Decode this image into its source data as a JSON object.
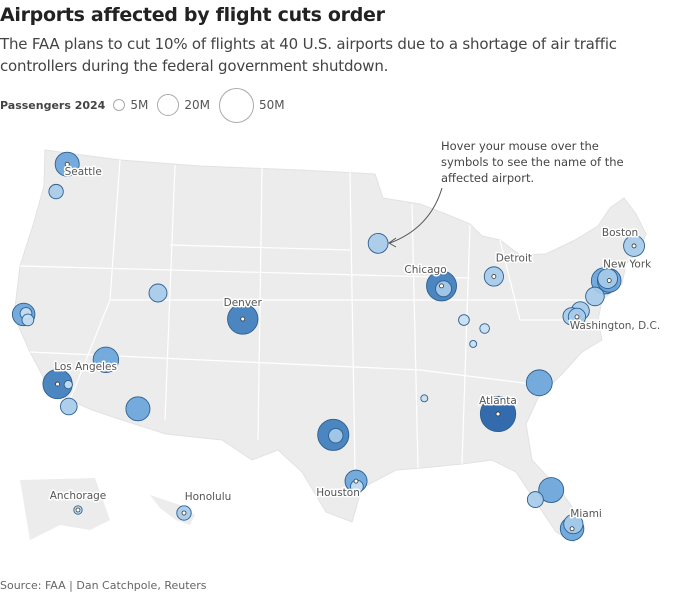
{
  "title": "Airports affected by flight cuts order",
  "subtitle": "The FAA plans to cut 10% of flights at 40 U.S. airports due to a shortage of air traffic controllers during the federal government shutdown.",
  "legend": {
    "title": "Passengers 2024",
    "items": [
      {
        "label": "5M",
        "value": 5
      },
      {
        "label": "20M",
        "value": 20
      },
      {
        "label": "50M",
        "value": 50
      }
    ]
  },
  "annotation": "Hover your mouse over the symbols to see the name of the affected airport.",
  "source": "Source: FAA | Dan Catchpole, Reuters",
  "colors": {
    "land": "#ececec",
    "border": "#ffffff",
    "stroke": "#2d5f8f",
    "darkest": "#2460a7",
    "dark": "#3d7dbd",
    "medium": "#6aa5da",
    "light": "#a6cbea",
    "lightest": "#c8dff2"
  },
  "airports": [
    {
      "code": "ATL",
      "lat": 33.64,
      "lon": -84.43,
      "passengers": 54,
      "label": "Atlanta"
    },
    {
      "code": "DFW",
      "lat": 32.9,
      "lon": -97.04,
      "passengers": 42,
      "label": ""
    },
    {
      "code": "DEN",
      "lat": 39.86,
      "lon": -104.67,
      "passengers": 40,
      "label": "Denver"
    },
    {
      "code": "ORD",
      "lat": 41.98,
      "lon": -87.9,
      "passengers": 39,
      "label": "Chicago"
    },
    {
      "code": "LAX",
      "lat": 33.94,
      "lon": -118.41,
      "passengers": 37,
      "label": "Los Angeles"
    },
    {
      "code": "EWR",
      "lat": 40.69,
      "lon": -74.17,
      "passengers": 30,
      "label": ""
    },
    {
      "code": "CLT",
      "lat": 35.21,
      "lon": -80.94,
      "passengers": 29,
      "label": ""
    },
    {
      "code": "LAS",
      "lat": 36.08,
      "lon": -115.15,
      "passengers": 28,
      "label": ""
    },
    {
      "code": "MCO",
      "lat": 28.43,
      "lon": -81.31,
      "passengers": 27,
      "label": ""
    },
    {
      "code": "PHX",
      "lat": 33.43,
      "lon": -112.01,
      "passengers": 25,
      "label": ""
    },
    {
      "code": "SEA",
      "lat": 47.45,
      "lon": -122.31,
      "passengers": 25,
      "label": "Seattle"
    },
    {
      "code": "JFK",
      "lat": 40.64,
      "lon": -73.78,
      "passengers": 24,
      "label": "New York"
    },
    {
      "code": "MIA",
      "lat": 25.79,
      "lon": -80.29,
      "passengers": 24,
      "label": "Miami"
    },
    {
      "code": "SFO",
      "lat": 37.62,
      "lon": -122.38,
      "passengers": 22,
      "label": ""
    },
    {
      "code": "IAH",
      "lat": 29.99,
      "lon": -95.34,
      "passengers": 21,
      "label": "Houston"
    },
    {
      "code": "BOS",
      "lat": 42.36,
      "lon": -71.01,
      "passengers": 19,
      "label": "Boston"
    },
    {
      "code": "MSP",
      "lat": 44.88,
      "lon": -93.22,
      "passengers": 17,
      "label": ""
    },
    {
      "code": "LGA",
      "lat": 40.78,
      "lon": -73.87,
      "passengers": 17,
      "label": ""
    },
    {
      "code": "DTW",
      "lat": 42.21,
      "lon": -83.35,
      "passengers": 16,
      "label": "Detroit"
    },
    {
      "code": "FLL",
      "lat": 26.07,
      "lon": -80.15,
      "passengers": 16,
      "label": ""
    },
    {
      "code": "PHL",
      "lat": 39.87,
      "lon": -75.24,
      "passengers": 15,
      "label": ""
    },
    {
      "code": "SLC",
      "lat": 40.79,
      "lon": -111.98,
      "passengers": 14,
      "label": ""
    },
    {
      "code": "BWI",
      "lat": 39.18,
      "lon": -76.67,
      "passengers": 14,
      "label": ""
    },
    {
      "code": "IAD",
      "lat": 38.95,
      "lon": -77.46,
      "passengers": 13,
      "label": ""
    },
    {
      "code": "DCA",
      "lat": 38.85,
      "lon": -77.04,
      "passengers": 13,
      "label": "Washington, D.C."
    },
    {
      "code": "SAN",
      "lat": 32.73,
      "lon": -117.19,
      "passengers": 12,
      "label": ""
    },
    {
      "code": "TPA",
      "lat": 27.98,
      "lon": -82.53,
      "passengers": 11,
      "label": ""
    },
    {
      "code": "MDW",
      "lat": 41.79,
      "lon": -87.75,
      "passengers": 11,
      "label": ""
    },
    {
      "code": "PDX",
      "lat": 45.59,
      "lon": -122.6,
      "passengers": 9,
      "label": ""
    },
    {
      "code": "DAL",
      "lat": 32.85,
      "lon": -96.85,
      "passengers": 9,
      "label": ""
    },
    {
      "code": "HOU",
      "lat": 29.65,
      "lon": -95.28,
      "passengers": 7,
      "label": ""
    },
    {
      "code": "OAK",
      "lat": 37.72,
      "lon": -122.22,
      "passengers": 6,
      "label": ""
    },
    {
      "code": "SJC",
      "lat": 37.36,
      "lon": -121.93,
      "passengers": 6,
      "label": ""
    },
    {
      "code": "IND",
      "lat": 39.72,
      "lon": -86.29,
      "passengers": 5,
      "label": ""
    },
    {
      "code": "CVG",
      "lat": 39.05,
      "lon": -84.67,
      "passengers": 4,
      "label": ""
    },
    {
      "code": "ONT",
      "lat": 34.06,
      "lon": -117.6,
      "passengers": 3,
      "label": ""
    },
    {
      "code": "SDF",
      "lat": 38.17,
      "lon": -85.74,
      "passengers": 2,
      "label": ""
    },
    {
      "code": "MEM",
      "lat": 35.04,
      "lon": -89.98,
      "passengers": 2,
      "label": ""
    },
    {
      "code": "ANC",
      "lat": 61.17,
      "lon": -149.99,
      "passengers": 3,
      "label": "Anchorage",
      "inset": "alaska"
    },
    {
      "code": "HNL",
      "lat": 21.32,
      "lon": -157.92,
      "passengers": 9,
      "label": "Honolulu",
      "inset": "hawaii"
    }
  ]
}
